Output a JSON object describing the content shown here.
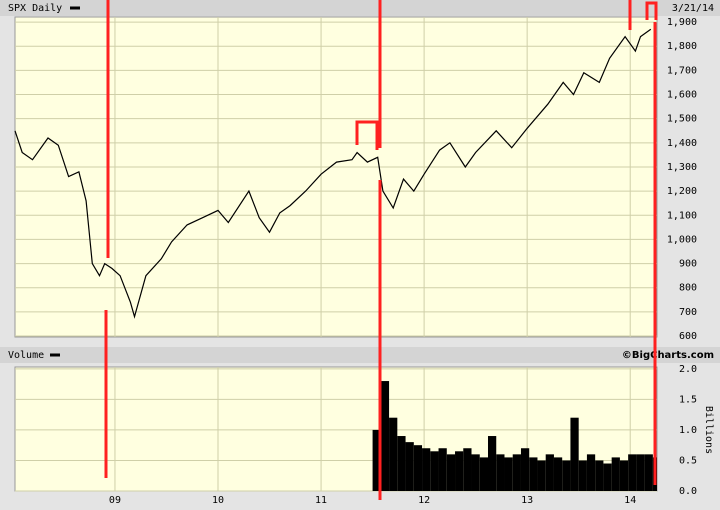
{
  "chart_data": [
    {
      "type": "line",
      "date": "3/21/14",
      "x": [
        2008.03,
        2008.1,
        2008.2,
        2008.35,
        2008.45,
        2008.55,
        2008.65,
        2008.72,
        2008.78,
        2008.85,
        2008.9,
        2008.97,
        2009.05,
        2009.15,
        2009.19,
        2009.3,
        2009.45,
        2009.55,
        2009.7,
        2009.85,
        2010.0,
        2010.1,
        2010.3,
        2010.4,
        2010.5,
        2010.6,
        2010.7,
        2010.85,
        2011.0,
        2011.15,
        2011.3,
        2011.35,
        2011.45,
        2011.55,
        2011.6,
        2011.7,
        2011.8,
        2011.9,
        2012.0,
        2012.15,
        2012.25,
        2012.4,
        2012.5,
        2012.7,
        2012.85,
        2013.0,
        2013.2,
        2013.35,
        2013.45,
        2013.55,
        2013.7,
        2013.8,
        2013.95,
        2014.05,
        2014.1,
        2014.2
      ],
      "series": [
        {
          "name": "SPX Daily",
          "color": "#000000",
          "values": [
            1450,
            1360,
            1330,
            1420,
            1390,
            1260,
            1280,
            1160,
            900,
            850,
            900,
            880,
            850,
            740,
            680,
            850,
            920,
            990,
            1060,
            1090,
            1120,
            1070,
            1200,
            1090,
            1030,
            1110,
            1140,
            1200,
            1270,
            1320,
            1330,
            1360,
            1320,
            1340,
            1200,
            1130,
            1250,
            1200,
            1270,
            1370,
            1400,
            1300,
            1360,
            1450,
            1380,
            1460,
            1560,
            1650,
            1600,
            1690,
            1650,
            1750,
            1840,
            1780,
            1840,
            1870
          ]
        }
      ],
      "xlim": [
        2008.03,
        2014.26
      ],
      "ylim": [
        596,
        1921
      ],
      "yticks": [
        600,
        700,
        800,
        900,
        {
          "value": 1000,
          "label": "1,000"
        },
        {
          "value": 1100,
          "label": "1,100"
        },
        {
          "value": 1200,
          "label": "1,200"
        },
        {
          "value": 1300,
          "label": "1,300"
        },
        {
          "value": 1400,
          "label": "1,400"
        },
        {
          "value": 1500,
          "label": "1,500"
        },
        {
          "value": 1600,
          "label": "1,600"
        },
        {
          "value": 1700,
          "label": "1,700"
        },
        {
          "value": 1800,
          "label": "1,800"
        },
        {
          "value": 1900,
          "label": "1,900"
        }
      ],
      "grid": true
    },
    {
      "type": "bar",
      "credit": "©BigCharts.com",
      "y_label": "Billions",
      "x": [
        2011.5,
        2011.58,
        2011.66,
        2011.74,
        2011.82,
        2011.9,
        2011.98,
        2012.06,
        2012.14,
        2012.22,
        2012.3,
        2012.38,
        2012.46,
        2012.54,
        2012.62,
        2012.7,
        2012.78,
        2012.86,
        2012.94,
        2013.02,
        2013.1,
        2013.18,
        2013.26,
        2013.34,
        2013.42,
        2013.5,
        2013.58,
        2013.66,
        2013.74,
        2013.82,
        2013.9,
        2013.98,
        2014.06,
        2014.14,
        2014.22
      ],
      "series": [
        {
          "name": "Volume",
          "color": "#000000",
          "values": [
            1.0,
            1.8,
            1.2,
            0.9,
            0.8,
            0.75,
            0.7,
            0.65,
            0.7,
            0.6,
            0.65,
            0.7,
            0.6,
            0.55,
            0.9,
            0.6,
            0.55,
            0.6,
            0.7,
            0.55,
            0.5,
            0.6,
            0.55,
            0.5,
            1.2,
            0.5,
            0.6,
            0.5,
            0.45,
            0.55,
            0.5,
            0.6,
            0.6,
            0.6,
            0.55
          ]
        }
      ],
      "xlim": [
        2008.03,
        2014.26
      ],
      "ylim": [
        0,
        2.03
      ],
      "xticks": [
        {
          "value": 2009,
          "label": "09"
        },
        {
          "value": 2010,
          "label": "10"
        },
        {
          "value": 2011,
          "label": "11"
        },
        {
          "value": 2012,
          "label": "12"
        },
        {
          "value": 2013,
          "label": "13"
        },
        {
          "value": 2014,
          "label": "14"
        }
      ],
      "yticks": [
        {
          "value": 0,
          "label": "0.0"
        },
        0.5,
        {
          "value": 1,
          "label": "1.0"
        },
        1.5,
        {
          "value": 2,
          "label": "2.0"
        }
      ],
      "grid": true
    }
  ]
}
